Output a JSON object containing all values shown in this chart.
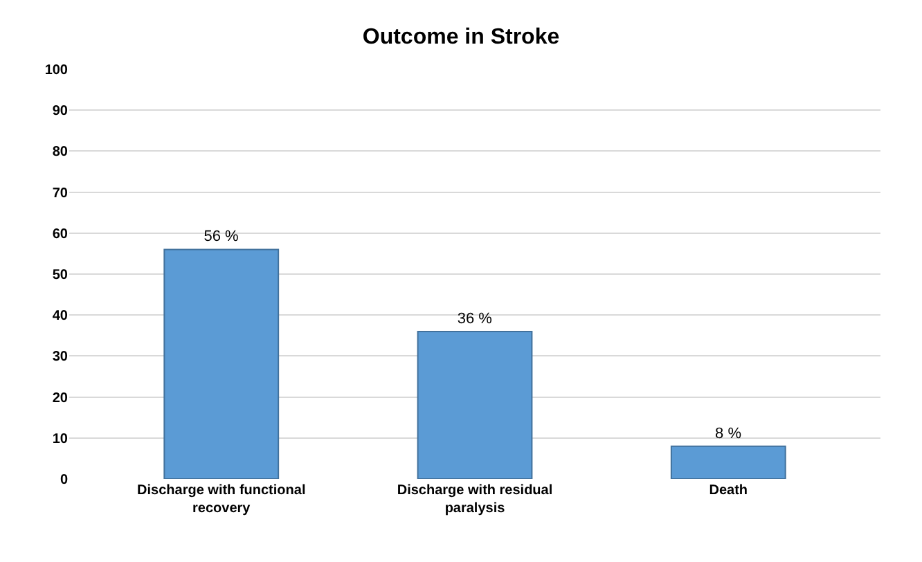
{
  "chart_data": {
    "type": "bar",
    "title": "Outcome in Stroke",
    "categories": [
      "Discharge with functional recovery",
      "Discharge with residual paralysis",
      "Death"
    ],
    "values": [
      56,
      36,
      8
    ],
    "value_labels": [
      "56 %",
      "36 %",
      "8 %"
    ],
    "color": "#5b9bd5",
    "ylim": [
      0,
      100
    ],
    "yticks": [
      0,
      10,
      20,
      30,
      40,
      50,
      60,
      70,
      80,
      90,
      100
    ],
    "grid": "y"
  }
}
